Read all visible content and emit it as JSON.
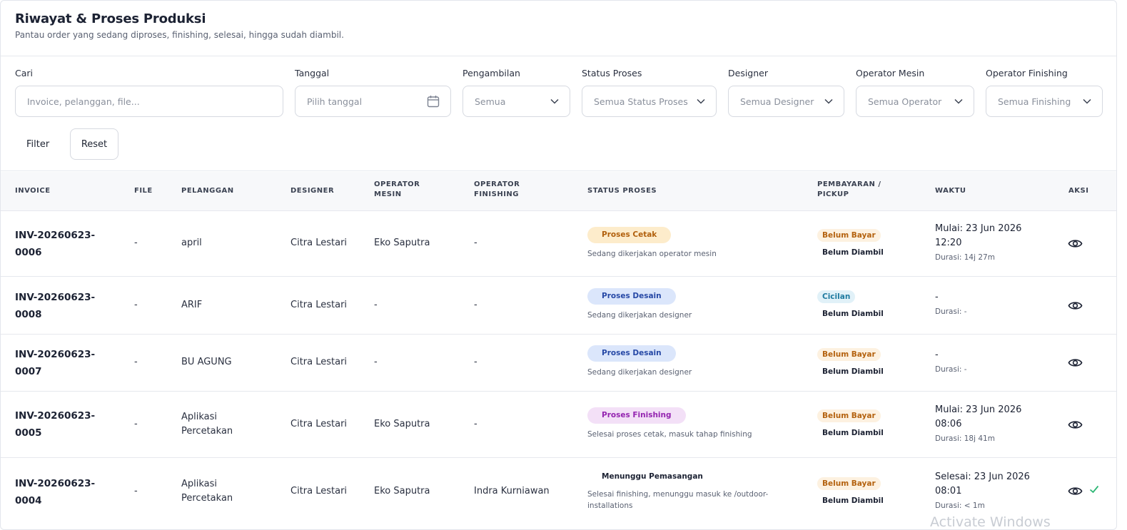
{
  "header": {
    "title": "Riwayat & Proses Produksi",
    "subtitle": "Pantau order yang sedang diproses, finishing, selesai, hingga sudah diambil."
  },
  "filters": {
    "search": {
      "label": "Cari",
      "placeholder": "Invoice, pelanggan, file..."
    },
    "date": {
      "label": "Tanggal",
      "placeholder": "Pilih tanggal",
      "icon": "calendar-icon"
    },
    "pickup": {
      "label": "Pengambilan",
      "value": "Semua"
    },
    "status": {
      "label": "Status Proses",
      "value": "Semua Status Proses"
    },
    "designer": {
      "label": "Designer",
      "value": "Semua Designer"
    },
    "operator_mesin": {
      "label": "Operator Mesin",
      "value": "Semua Operator"
    },
    "operator_finishing": {
      "label": "Operator Finishing",
      "value": "Semua Finishing"
    },
    "filter_button": "Filter",
    "reset_button": "Reset"
  },
  "table": {
    "columns": {
      "invoice": "INVOICE",
      "file": "FILE",
      "pelanggan": "PELANGGAN",
      "designer": "DESIGNER",
      "operator_mesin_1": "OPERATOR",
      "operator_mesin_2": "MESIN",
      "operator_finishing_1": "OPERATOR",
      "operator_finishing_2": "FINISHING",
      "status": "STATUS PROSES",
      "pembayaran_1": "PEMBAYARAN /",
      "pembayaran_2": "PICKUP",
      "waktu": "WAKTU",
      "aksi": "AKSI"
    },
    "rows": [
      {
        "invoice_1": "INV-20260623-",
        "invoice_2": "0006",
        "file": "-",
        "pelanggan_1": "april",
        "pelanggan_2": "",
        "designer": "Citra Lestari",
        "operator_mesin": "Eko Saputra",
        "operator_finishing": "-",
        "status_badge": "Proses Cetak",
        "status_note": "Sedang dikerjakan operator mesin",
        "payment": "Belum Bayar",
        "pickup": "Belum Diambil",
        "waktu_1": "Mulai: 23 Jun 2026",
        "waktu_2": "12:20",
        "durasi": "Durasi: 14j 27m"
      },
      {
        "invoice_1": "INV-20260623-",
        "invoice_2": "0008",
        "file": "-",
        "pelanggan_1": "ARIF",
        "pelanggan_2": "",
        "designer": "Citra Lestari",
        "operator_mesin": "-",
        "operator_finishing": "-",
        "status_badge": "Proses Desain",
        "status_note": "Sedang dikerjakan designer",
        "payment": "Cicilan",
        "pickup": "Belum Diambil",
        "waktu_1": "-",
        "waktu_2": "",
        "durasi": "Durasi: -"
      },
      {
        "invoice_1": "INV-20260623-",
        "invoice_2": "0007",
        "file": "-",
        "pelanggan_1": "BU AGUNG",
        "pelanggan_2": "",
        "designer": "Citra Lestari",
        "operator_mesin": "-",
        "operator_finishing": "-",
        "status_badge": "Proses Desain",
        "status_note": "Sedang dikerjakan designer",
        "payment": "Belum Bayar",
        "pickup": "Belum Diambil",
        "waktu_1": "-",
        "waktu_2": "",
        "durasi": "Durasi: -"
      },
      {
        "invoice_1": "INV-20260623-",
        "invoice_2": "0005",
        "file": "-",
        "pelanggan_1": "Aplikasi",
        "pelanggan_2": "Percetakan",
        "designer": "Citra Lestari",
        "operator_mesin": "Eko Saputra",
        "operator_finishing": "-",
        "status_badge": "Proses Finishing",
        "status_note": "Selesai proses cetak, masuk tahap finishing",
        "payment": "Belum Bayar",
        "pickup": "Belum Diambil",
        "waktu_1": "Mulai: 23 Jun 2026",
        "waktu_2": "08:06",
        "durasi": "Durasi: 18j 41m"
      },
      {
        "invoice_1": "INV-20260623-",
        "invoice_2": "0004",
        "file": "-",
        "pelanggan_1": "Aplikasi",
        "pelanggan_2": "Percetakan",
        "designer": "Citra Lestari",
        "operator_mesin": "Eko Saputra",
        "operator_finishing": "Indra Kurniawan",
        "status_badge": "Menunggu Pemasangan",
        "status_note": "Selesai finishing, menunggu masuk ke /outdoor-installations",
        "payment": "Belum Bayar",
        "pickup": "Belum Diambil",
        "waktu_1": "Selesai: 23 Jun 2026",
        "waktu_2": "08:01",
        "durasi": "Durasi: < 1m"
      }
    ]
  },
  "watermark": "Activate Windows",
  "colors": {
    "cetak_bg": "#fdeccb",
    "cetak_fg": "#b1600d",
    "desain_bg": "#dbe6fb",
    "desain_fg": "#2749a6",
    "finishing_bg": "#f3e0f7",
    "finishing_fg": "#9424b0",
    "belum_bayar_fg": "#b4620f",
    "cicilan_fg": "#1f7aa0",
    "check": "#2bb673"
  }
}
